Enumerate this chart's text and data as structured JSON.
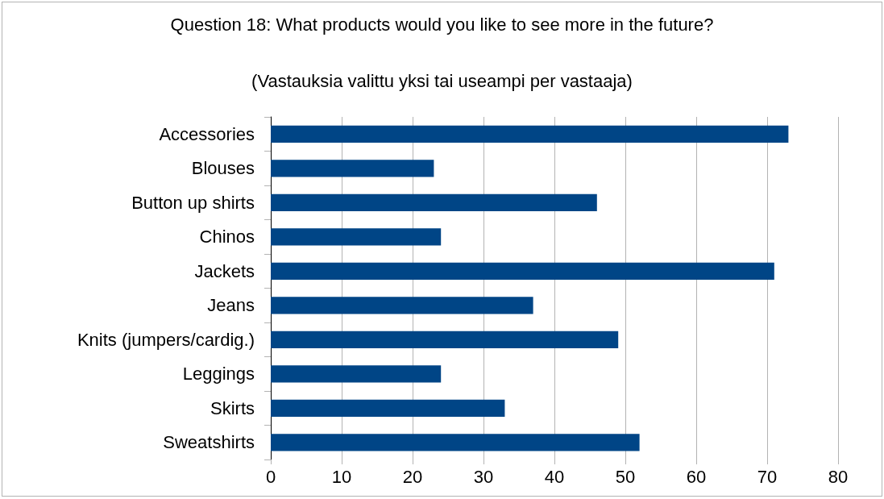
{
  "chart_data": {
    "type": "bar",
    "orientation": "horizontal",
    "title": "Question 18: What products would you like to see more in the future?",
    "subtitle": "(Vastauksia valittu yksi tai useampi per vastaaja)",
    "categories": [
      "Accessories",
      "Blouses",
      "Button up shirts",
      "Chinos",
      "Jackets",
      "Jeans",
      "Knits (jumpers/cardig.)",
      "Leggings",
      "Skirts",
      "Sweatshirts"
    ],
    "values": [
      73,
      23,
      46,
      24,
      71,
      37,
      49,
      24,
      33,
      52
    ],
    "color": "#004586",
    "xlim": [
      0,
      80
    ],
    "xticks": [
      0,
      10,
      20,
      30,
      40,
      50,
      60,
      70,
      80
    ],
    "grid": "x"
  }
}
